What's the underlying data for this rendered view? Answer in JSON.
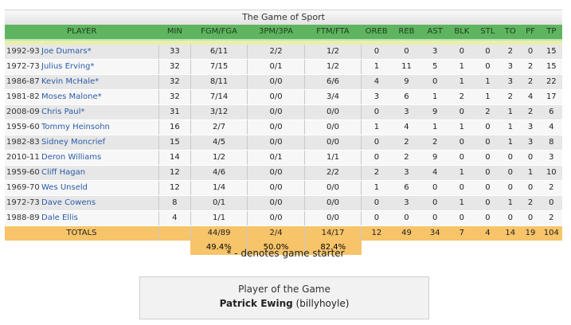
{
  "title": "The Game of Sport",
  "headers": [
    "PLAYER",
    "MIN",
    "FGM/FGA",
    "3PM/3PA",
    "FTM/FTA",
    "OREB",
    "REB",
    "AST",
    "BLK",
    "STL",
    "TO",
    "PF",
    "TP"
  ],
  "rows": [
    {
      "year": "1992-93",
      "name": "Joe Dumars*",
      "min": "33",
      "fg": "6/11",
      "tp3": "2/2",
      "ft": "1/2",
      "oreb": "0",
      "reb": "0",
      "ast": "3",
      "blk": "0",
      "stl": "0",
      "to": "2",
      "pf": "0",
      "tp": "15"
    },
    {
      "year": "1972-73",
      "name": "Julius Erving*",
      "min": "32",
      "fg": "7/15",
      "tp3": "0/1",
      "ft": "1/2",
      "oreb": "1",
      "reb": "11",
      "ast": "5",
      "blk": "1",
      "stl": "0",
      "to": "3",
      "pf": "2",
      "tp": "15"
    },
    {
      "year": "1986-87",
      "name": "Kevin McHale*",
      "min": "32",
      "fg": "8/11",
      "tp3": "0/0",
      "ft": "6/6",
      "oreb": "4",
      "reb": "9",
      "ast": "0",
      "blk": "1",
      "stl": "1",
      "to": "3",
      "pf": "2",
      "tp": "22"
    },
    {
      "year": "1981-82",
      "name": "Moses Malone*",
      "min": "32",
      "fg": "7/14",
      "tp3": "0/0",
      "ft": "3/4",
      "oreb": "3",
      "reb": "6",
      "ast": "1",
      "blk": "2",
      "stl": "1",
      "to": "2",
      "pf": "4",
      "tp": "17"
    },
    {
      "year": "2008-09",
      "name": "Chris Paul*",
      "min": "31",
      "fg": "3/12",
      "tp3": "0/0",
      "ft": "0/0",
      "oreb": "0",
      "reb": "3",
      "ast": "9",
      "blk": "0",
      "stl": "2",
      "to": "1",
      "pf": "2",
      "tp": "6"
    },
    {
      "year": "1959-60",
      "name": "Tommy Heinsohn",
      "min": "16",
      "fg": "2/7",
      "tp3": "0/0",
      "ft": "0/0",
      "oreb": "1",
      "reb": "4",
      "ast": "1",
      "blk": "1",
      "stl": "0",
      "to": "1",
      "pf": "3",
      "tp": "4"
    },
    {
      "year": "1982-83",
      "name": "Sidney Moncrief",
      "min": "15",
      "fg": "4/5",
      "tp3": "0/0",
      "ft": "0/0",
      "oreb": "0",
      "reb": "2",
      "ast": "2",
      "blk": "0",
      "stl": "0",
      "to": "1",
      "pf": "3",
      "tp": "8"
    },
    {
      "year": "2010-11",
      "name": "Deron Williams",
      "min": "14",
      "fg": "1/2",
      "tp3": "0/1",
      "ft": "1/1",
      "oreb": "0",
      "reb": "2",
      "ast": "9",
      "blk": "0",
      "stl": "0",
      "to": "0",
      "pf": "0",
      "tp": "3"
    },
    {
      "year": "1959-60",
      "name": "Cliff Hagan",
      "min": "12",
      "fg": "4/6",
      "tp3": "0/0",
      "ft": "2/2",
      "oreb": "2",
      "reb": "3",
      "ast": "4",
      "blk": "1",
      "stl": "0",
      "to": "0",
      "pf": "1",
      "tp": "10"
    },
    {
      "year": "1969-70",
      "name": "Wes Unseld",
      "min": "12",
      "fg": "1/4",
      "tp3": "0/0",
      "ft": "0/0",
      "oreb": "1",
      "reb": "6",
      "ast": "0",
      "blk": "0",
      "stl": "0",
      "to": "0",
      "pf": "0",
      "tp": "2"
    },
    {
      "year": "1972-73",
      "name": "Dave Cowens",
      "min": "8",
      "fg": "0/1",
      "tp3": "0/0",
      "ft": "0/0",
      "oreb": "0",
      "reb": "3",
      "ast": "0",
      "blk": "1",
      "stl": "0",
      "to": "1",
      "pf": "2",
      "tp": "0"
    },
    {
      "year": "1988-89",
      "name": "Dale Ellis",
      "min": "4",
      "fg": "1/1",
      "tp3": "0/0",
      "ft": "0/0",
      "oreb": "0",
      "reb": "0",
      "ast": "0",
      "blk": "0",
      "stl": "0",
      "to": "0",
      "pf": "0",
      "tp": "2"
    }
  ],
  "totals": {
    "label": "TOTALS",
    "min": "",
    "fg": "44/89",
    "tp3": "2/4",
    "ft": "14/17",
    "oreb": "12",
    "reb": "49",
    "ast": "34",
    "blk": "7",
    "stl": "4",
    "to": "14",
    "pf": "19",
    "tp": "104"
  },
  "percentages": {
    "fg": "49.4%",
    "tp3": "50.0%",
    "ft": "82.4%"
  },
  "note": "* - denotes game starter",
  "player_of_game": {
    "label": "Player of the Game",
    "name": "Patrick Ewing",
    "user": "(billyhoyle)"
  },
  "colors": {
    "header": "#5fb55f",
    "totals": "#f7c46a",
    "link": "#2a5ca8"
  }
}
